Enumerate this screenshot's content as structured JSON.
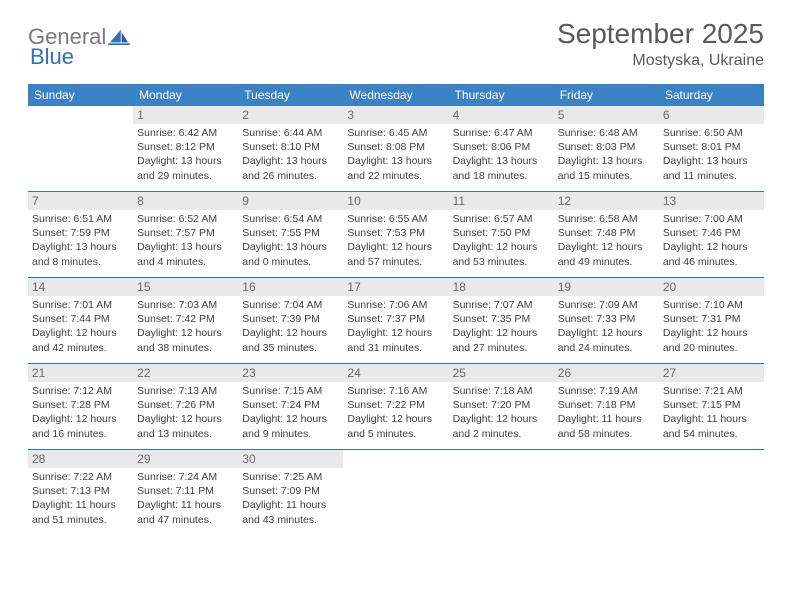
{
  "logo": {
    "word1": "General",
    "word2": "Blue"
  },
  "title": "September 2025",
  "location": "Mostyska, Ukraine",
  "colors": {
    "header_bg": "#3b82c4",
    "header_text": "#ffffff",
    "divider": "#2f72b8",
    "daynum_bg": "#e9e9e9",
    "text": "#404040",
    "logo_gray": "#7a7a7a",
    "logo_blue": "#2f72b8"
  },
  "typography": {
    "title_fontsize": 28,
    "location_fontsize": 16,
    "header_fontsize": 12,
    "daynum_fontsize": 12,
    "info_fontsize": 10.5
  },
  "day_headers": [
    "Sunday",
    "Monday",
    "Tuesday",
    "Wednesday",
    "Thursday",
    "Friday",
    "Saturday"
  ],
  "weeks": [
    [
      null,
      {
        "n": "1",
        "sr": "6:42 AM",
        "ss": "8:12 PM",
        "dl": "13 hours and 29 minutes."
      },
      {
        "n": "2",
        "sr": "6:44 AM",
        "ss": "8:10 PM",
        "dl": "13 hours and 26 minutes."
      },
      {
        "n": "3",
        "sr": "6:45 AM",
        "ss": "8:08 PM",
        "dl": "13 hours and 22 minutes."
      },
      {
        "n": "4",
        "sr": "6:47 AM",
        "ss": "8:06 PM",
        "dl": "13 hours and 18 minutes."
      },
      {
        "n": "5",
        "sr": "6:48 AM",
        "ss": "8:03 PM",
        "dl": "13 hours and 15 minutes."
      },
      {
        "n": "6",
        "sr": "6:50 AM",
        "ss": "8:01 PM",
        "dl": "13 hours and 11 minutes."
      }
    ],
    [
      {
        "n": "7",
        "sr": "6:51 AM",
        "ss": "7:59 PM",
        "dl": "13 hours and 8 minutes."
      },
      {
        "n": "8",
        "sr": "6:52 AM",
        "ss": "7:57 PM",
        "dl": "13 hours and 4 minutes."
      },
      {
        "n": "9",
        "sr": "6:54 AM",
        "ss": "7:55 PM",
        "dl": "13 hours and 0 minutes."
      },
      {
        "n": "10",
        "sr": "6:55 AM",
        "ss": "7:53 PM",
        "dl": "12 hours and 57 minutes."
      },
      {
        "n": "11",
        "sr": "6:57 AM",
        "ss": "7:50 PM",
        "dl": "12 hours and 53 minutes."
      },
      {
        "n": "12",
        "sr": "6:58 AM",
        "ss": "7:48 PM",
        "dl": "12 hours and 49 minutes."
      },
      {
        "n": "13",
        "sr": "7:00 AM",
        "ss": "7:46 PM",
        "dl": "12 hours and 46 minutes."
      }
    ],
    [
      {
        "n": "14",
        "sr": "7:01 AM",
        "ss": "7:44 PM",
        "dl": "12 hours and 42 minutes."
      },
      {
        "n": "15",
        "sr": "7:03 AM",
        "ss": "7:42 PM",
        "dl": "12 hours and 38 minutes."
      },
      {
        "n": "16",
        "sr": "7:04 AM",
        "ss": "7:39 PM",
        "dl": "12 hours and 35 minutes."
      },
      {
        "n": "17",
        "sr": "7:06 AM",
        "ss": "7:37 PM",
        "dl": "12 hours and 31 minutes."
      },
      {
        "n": "18",
        "sr": "7:07 AM",
        "ss": "7:35 PM",
        "dl": "12 hours and 27 minutes."
      },
      {
        "n": "19",
        "sr": "7:09 AM",
        "ss": "7:33 PM",
        "dl": "12 hours and 24 minutes."
      },
      {
        "n": "20",
        "sr": "7:10 AM",
        "ss": "7:31 PM",
        "dl": "12 hours and 20 minutes."
      }
    ],
    [
      {
        "n": "21",
        "sr": "7:12 AM",
        "ss": "7:28 PM",
        "dl": "12 hours and 16 minutes."
      },
      {
        "n": "22",
        "sr": "7:13 AM",
        "ss": "7:26 PM",
        "dl": "12 hours and 13 minutes."
      },
      {
        "n": "23",
        "sr": "7:15 AM",
        "ss": "7:24 PM",
        "dl": "12 hours and 9 minutes."
      },
      {
        "n": "24",
        "sr": "7:16 AM",
        "ss": "7:22 PM",
        "dl": "12 hours and 5 minutes."
      },
      {
        "n": "25",
        "sr": "7:18 AM",
        "ss": "7:20 PM",
        "dl": "12 hours and 2 minutes."
      },
      {
        "n": "26",
        "sr": "7:19 AM",
        "ss": "7:18 PM",
        "dl": "11 hours and 58 minutes."
      },
      {
        "n": "27",
        "sr": "7:21 AM",
        "ss": "7:15 PM",
        "dl": "11 hours and 54 minutes."
      }
    ],
    [
      {
        "n": "28",
        "sr": "7:22 AM",
        "ss": "7:13 PM",
        "dl": "11 hours and 51 minutes."
      },
      {
        "n": "29",
        "sr": "7:24 AM",
        "ss": "7:11 PM",
        "dl": "11 hours and 47 minutes."
      },
      {
        "n": "30",
        "sr": "7:25 AM",
        "ss": "7:09 PM",
        "dl": "11 hours and 43 minutes."
      },
      null,
      null,
      null,
      null
    ]
  ],
  "labels": {
    "sunrise": "Sunrise:",
    "sunset": "Sunset:",
    "daylight": "Daylight:"
  }
}
